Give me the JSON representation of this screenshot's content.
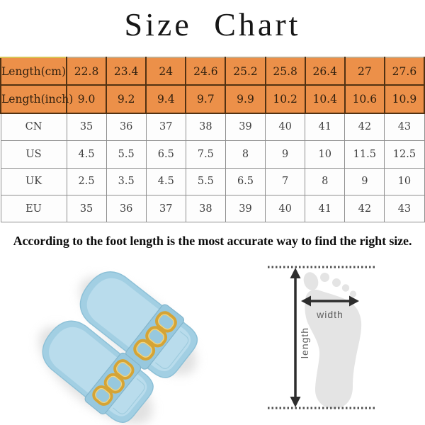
{
  "page": {
    "title": "Size Chart",
    "note": "According to the foot length is the most  accurate way to find the right size."
  },
  "chart_data": {
    "type": "table",
    "title": "Size Chart",
    "header_row_count": 2,
    "row_labels": [
      "Length(cm)",
      "Length(inch)",
      "CN",
      "US",
      "UK",
      "EU"
    ],
    "rows": [
      [
        "22.8",
        "23.4",
        "24",
        "24.6",
        "25.2",
        "25.8",
        "26.4",
        "27",
        "27.6"
      ],
      [
        "9.0",
        "9.2",
        "9.4",
        "9.7",
        "9.9",
        "10.2",
        "10.4",
        "10.6",
        "10.9"
      ],
      [
        "35",
        "36",
        "37",
        "38",
        "39",
        "40",
        "41",
        "42",
        "43"
      ],
      [
        "4.5",
        "5.5",
        "6.5",
        "7.5",
        "8",
        "9",
        "10",
        "11.5",
        "12.5"
      ],
      [
        "2.5",
        "3.5",
        "4.5",
        "5.5",
        "6.5",
        "7",
        "8",
        "9",
        "10"
      ],
      [
        "35",
        "36",
        "37",
        "38",
        "39",
        "40",
        "41",
        "42",
        "43"
      ]
    ]
  },
  "diagram": {
    "width_label": "width",
    "length_label": "length"
  },
  "product_image": {
    "name": "pair of light-blue flat slide sandals with gold chain straps",
    "colors": {
      "sole": "#a2cfe3",
      "insole": "#b9dcec",
      "strap": "#97c8de",
      "chain": "#d5a436",
      "shadow": "#c9c9c9"
    }
  },
  "colors": {
    "title-text": "#161616",
    "note-text": "#0d0d0d",
    "header-bg": "#ec9049",
    "header-border": "#513112",
    "header-text": "#31200f",
    "grid-line": "#8f8f8f",
    "cell-text": "#3f3f3f",
    "accent-gold": "#d7c455",
    "foot-fill": "#e4e4e4",
    "arrow": "#2d2d2d",
    "dotted": "#4f4f4f",
    "diagram-label": "#5e5e5e"
  }
}
